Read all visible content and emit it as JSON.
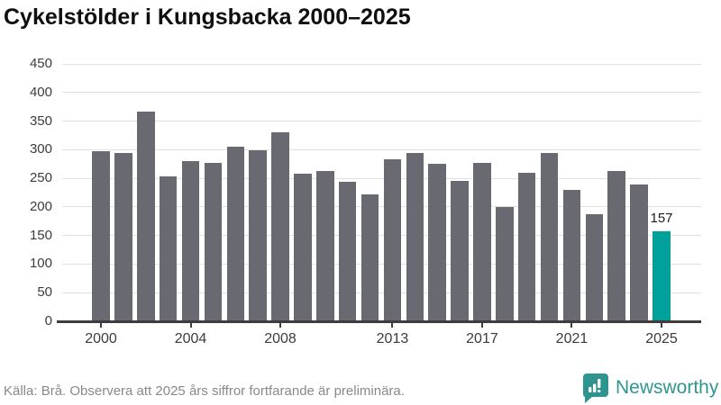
{
  "title": "Cykelstölder i Kungsbacka 2000–2025",
  "footer": {
    "source_note": "Källa: Brå. Observera att 2025 års siffror fortfarande är preliminära.",
    "brand": "Newsworthy"
  },
  "colors": {
    "bar": "#696971",
    "highlight": "#00a19a",
    "grid": "#e1e1e1",
    "axis": "#3d3d3d",
    "tick_text": "#3c3c3c",
    "title_text": "#0f0f0f",
    "footer_text": "#898989",
    "brand_teal": "#2f968f"
  },
  "chart_data": {
    "type": "bar",
    "title": "Cykelstölder i Kungsbacka 2000–2025",
    "categories": [
      2000,
      2001,
      2002,
      2003,
      2004,
      2005,
      2006,
      2007,
      2008,
      2009,
      2010,
      2011,
      2012,
      2013,
      2014,
      2015,
      2016,
      2017,
      2018,
      2019,
      2020,
      2021,
      2022,
      2023,
      2024,
      2025
    ],
    "values": [
      298,
      295,
      366,
      254,
      280,
      277,
      306,
      299,
      331,
      258,
      263,
      244,
      222,
      284,
      294,
      275,
      245,
      277,
      200,
      260,
      294,
      230,
      188,
      263,
      239,
      157
    ],
    "highlight_index": 25,
    "highlight_value_label": "157",
    "x_tick_labels": [
      "2000",
      "2004",
      "2008",
      "2013",
      "2017",
      "2021",
      "2025"
    ],
    "y_ticks": [
      0,
      50,
      100,
      150,
      200,
      250,
      300,
      350,
      400,
      450
    ],
    "ylim": [
      0,
      450
    ],
    "xlabel": "",
    "ylabel": "",
    "grid": true,
    "legend": false
  }
}
